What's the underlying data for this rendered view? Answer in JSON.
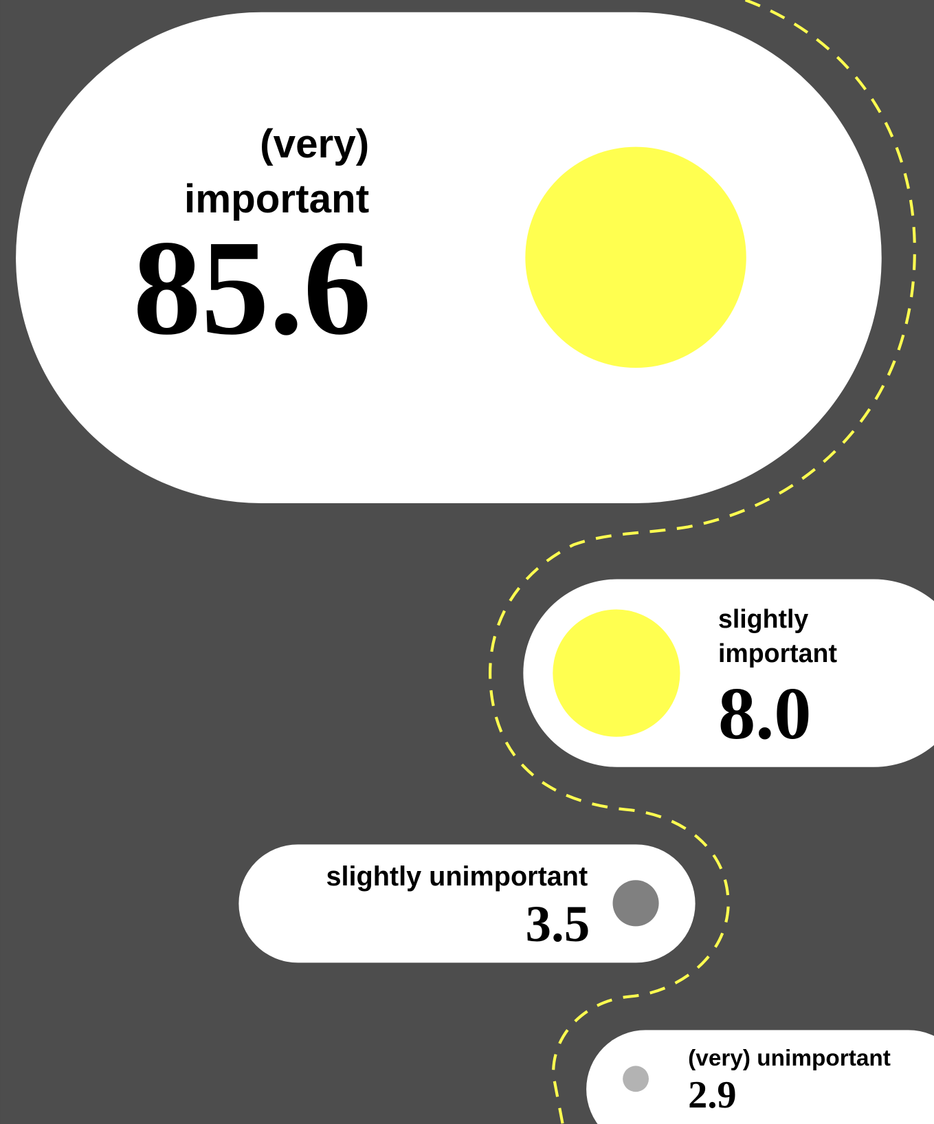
{
  "chart_data": {
    "type": "bubble",
    "categories": [
      "(very) important",
      "slightly important",
      "slightly unimportant",
      "(very) unimportant"
    ],
    "values": [
      85.6,
      8,
      3.5,
      2.9
    ],
    "value_labels": [
      "85.6",
      "8.0",
      "3.5",
      "2.9"
    ],
    "colors": [
      "#ffff50",
      "#ffff50",
      "#808080",
      "#b3b3b3"
    ]
  }
}
